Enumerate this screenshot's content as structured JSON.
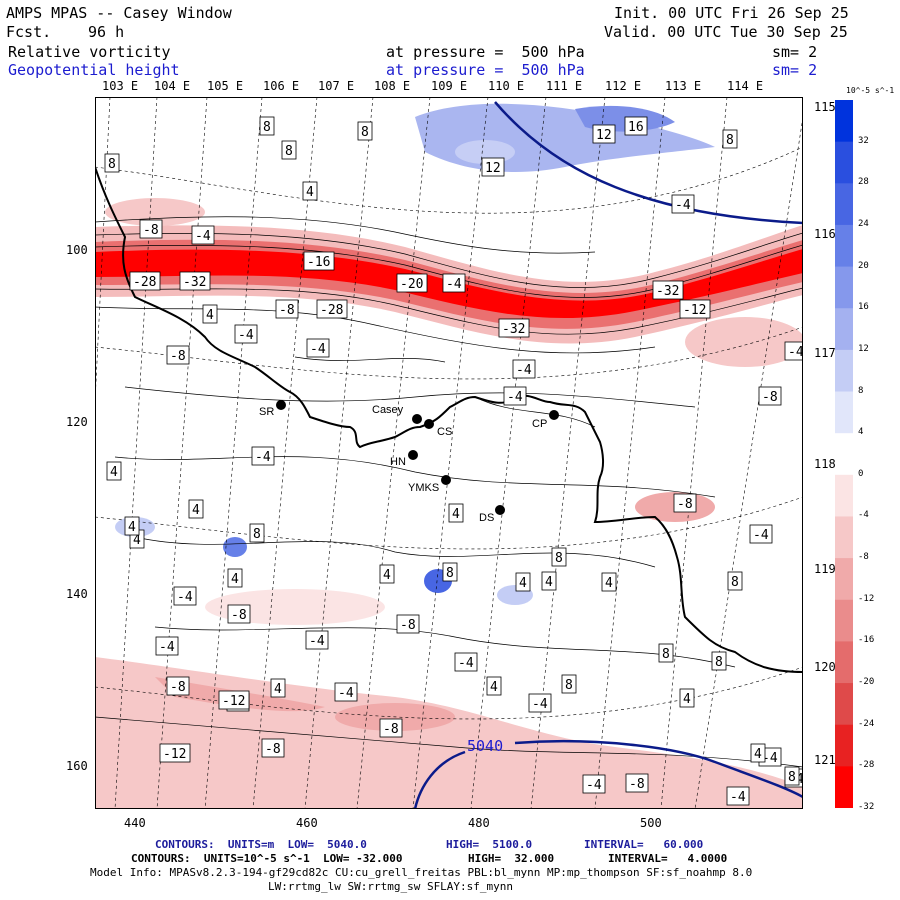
{
  "header": {
    "title": "AMPS MPAS -- Casey Window",
    "fcst_label": "Fcst.",
    "fcst_value": "96 h",
    "init": "Init. 00 UTC Fri 26 Sep 25",
    "valid": "Valid. 00 UTC Tue 30 Sep 25",
    "field1": "Relative vorticity",
    "field1_pressure": "at pressure =  500 hPa",
    "field1_sm": "sm= 2",
    "field2": "Geopotential height",
    "field2_pressure": "at pressure =  500 hPa",
    "field2_sm": "sm= 2"
  },
  "top_lon_labels": [
    "103 E",
    "104 E",
    "105 E",
    "106 E",
    "107 E",
    "108 E",
    "109 E",
    "110 E",
    "111 E",
    "112 E",
    "113 E",
    "114 E"
  ],
  "right_lon_labels": [
    "115 E",
    "116 E",
    "117 E",
    "118 E",
    "119 E",
    "120 E",
    "121 E"
  ],
  "left_axis": [
    "100",
    "120",
    "140",
    "160"
  ],
  "bottom_axis": [
    "440",
    "460",
    "480",
    "500"
  ],
  "stations": [
    {
      "name": "SR"
    },
    {
      "name": "Casey"
    },
    {
      "name": "CS"
    },
    {
      "name": "HN"
    },
    {
      "name": "YMKS"
    },
    {
      "name": "DS"
    },
    {
      "name": "CP"
    }
  ],
  "contour_labels": [
    "8",
    "8",
    "8",
    "12",
    "16",
    "8",
    "8",
    "12",
    "4",
    "-4",
    "-8",
    "-4",
    "-28",
    "-32",
    "-16",
    "-20",
    "-4",
    "-32",
    "-12",
    "4",
    "-4",
    "-8",
    "-28",
    "-32",
    "-4",
    "-8",
    "-4",
    "-4",
    "-8",
    "-4",
    "4",
    "4",
    "4",
    "-4",
    "-8",
    "-4",
    "8",
    "4",
    "4",
    "4",
    "8",
    "4",
    "4",
    "4",
    "8",
    "8",
    "4",
    "-4",
    "-4",
    "-8",
    "-4",
    "-8",
    "-4",
    "-8",
    "-8",
    "-4",
    "4",
    "4",
    "-4",
    "8",
    "8",
    "8",
    "4",
    "-12",
    "-8",
    "-12",
    "-4",
    "-8",
    "-4",
    "-8",
    "-4",
    "4",
    "-4",
    "8"
  ],
  "height_label": "5040",
  "colorbar": {
    "unit_sup": "10^-5 s^-1",
    "ticks": [
      "32",
      "28",
      "24",
      "20",
      "16",
      "12",
      "8",
      "4",
      "0",
      "-4",
      "-8",
      "-12",
      "-16",
      "-20",
      "-24",
      "-28",
      "-32"
    ],
    "colors": [
      "#0033dd",
      "#2a4fdf",
      "#4866e3",
      "#6680e8",
      "#8598ec",
      "#a4b1f0",
      "#c4cdf5",
      "#e1e6fa",
      "#ffffff",
      "#fbe4e4",
      "#f6c8c8",
      "#f0aaaa",
      "#ea8c8c",
      "#e46c6c",
      "#df4a4a",
      "#e82222",
      "#ff0000"
    ]
  },
  "footer": {
    "line1_a": "CONTOURS:  UNITS=m  LOW=  5040.0",
    "line1_b": "HIGH=  5100.0",
    "line1_c": "INTERVAL=   60.000",
    "line2_a": "CONTOURS:  UNITS=10^-5 s^-1  LOW= -32.000",
    "line2_b": "HIGH=  32.000",
    "line2_c": "INTERVAL=   4.0000",
    "model_info": "Model Info: MPASv8.2.3-194-gf29cd82c CU:cu_grell_freitas PBL:bl_mynn MP:mp_thompson SF:sf_noahmp 8.0",
    "model_info2": "LW:rrtmg_lw SW:rrtmg_sw SFLAY:sf_mynn"
  }
}
